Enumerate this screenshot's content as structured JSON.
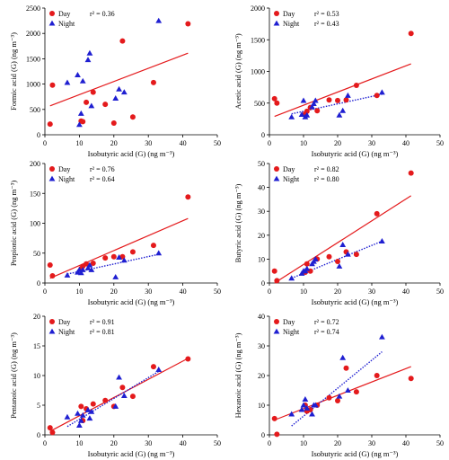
{
  "x_day": [
    1.5,
    2.2,
    10.5,
    11,
    12,
    14,
    17.5,
    20,
    22.5,
    25.5,
    31.5,
    41.5
  ],
  "x_night": [
    6.5,
    9.5,
    10,
    10.5,
    11,
    12.5,
    13,
    13.5,
    20.5,
    21.5,
    23,
    33
  ],
  "chart_data": [
    {
      "type": "scatter",
      "xlabel": "Isobutyric acid (G) (ng m⁻³)",
      "ylabel": "Formic acid (G) (ng m⁻³)",
      "xlim": [
        0,
        50
      ],
      "ylim": [
        0,
        2500
      ],
      "xticks": [
        "0",
        "10",
        "20",
        "30",
        "40",
        "50"
      ],
      "yticks": [
        "0",
        "500",
        "1000",
        "1500",
        "2000",
        "2500"
      ],
      "legend": {
        "day_label": "Day",
        "night_label": "Night",
        "day_r2": "r² = 0.36",
        "night_r2": ""
      },
      "series": [
        {
          "name": "Day",
          "y": [
            210,
            980,
            270,
            260,
            640,
            840,
            600,
            230,
            1850,
            350,
            1030,
            2190
          ],
          "fit": {
            "x": [
              1.5,
              41.5
            ],
            "y": [
              570,
              1610
            ],
            "style": "solid"
          }
        },
        {
          "name": "Night",
          "y": [
            1030,
            1180,
            200,
            420,
            1060,
            1480,
            1610,
            570,
            720,
            900,
            840,
            2250
          ]
        }
      ]
    },
    {
      "type": "scatter",
      "xlabel": "Isobutyric acid (G) (ng m⁻³)",
      "ylabel": "Acetic acid (G) (ng m⁻³)",
      "xlim": [
        0,
        50
      ],
      "ylim": [
        0,
        2000
      ],
      "xticks": [
        "0",
        "10",
        "20",
        "30",
        "40",
        "50"
      ],
      "yticks": [
        "0",
        "500",
        "1000",
        "1500",
        "2000"
      ],
      "legend": {
        "day_label": "Day",
        "night_label": "Night",
        "day_r2": "r² = 0.53",
        "night_r2": "r² = 0.43"
      },
      "series": [
        {
          "name": "Day",
          "y": [
            570,
            500,
            330,
            370,
            430,
            380,
            550,
            540,
            550,
            780,
            620,
            1600
          ],
          "fit": {
            "x": [
              1.5,
              41.5
            ],
            "y": [
              290,
              1120
            ],
            "style": "solid"
          }
        },
        {
          "name": "Night",
          "y": [
            280,
            320,
            540,
            280,
            310,
            440,
            490,
            540,
            310,
            380,
            620,
            670
          ],
          "fit": {
            "x": [
              6.5,
              33
            ],
            "y": [
              330,
              640
            ],
            "style": "dotted"
          }
        }
      ]
    },
    {
      "type": "scatter",
      "xlabel": "Isobutyric acid (G) (ng m⁻³)",
      "ylabel": "Propionic acid (G) (ng m⁻³)",
      "xlim": [
        0,
        50
      ],
      "ylim": [
        0,
        200
      ],
      "xticks": [
        "0",
        "10",
        "20",
        "30",
        "40",
        "50"
      ],
      "yticks": [
        "0",
        "50",
        "100",
        "150",
        "200"
      ],
      "legend": {
        "day_label": "Day",
        "night_label": "Night",
        "day_r2": "r² = 0.76",
        "night_r2": "r² = 0.64"
      },
      "series": [
        {
          "name": "Day",
          "y": [
            30,
            12,
            24,
            28,
            32,
            33,
            42,
            44,
            44,
            52,
            63,
            144
          ],
          "fit": {
            "x": [
              1.5,
              41.5
            ],
            "y": [
              8,
              108
            ],
            "style": "solid"
          }
        },
        {
          "name": "Night",
          "y": [
            13,
            18,
            22,
            17,
            22,
            25,
            30,
            22,
            10,
            43,
            38,
            50
          ],
          "fit": {
            "x": [
              6.5,
              33
            ],
            "y": [
              15,
              48
            ],
            "style": "dotted"
          }
        }
      ]
    },
    {
      "type": "scatter",
      "xlabel": "Isobutyric acid (G) (ng m⁻³)",
      "ylabel": "Butyric acid (G) (ng m⁻³)",
      "xlim": [
        0,
        50
      ],
      "ylim": [
        0,
        50
      ],
      "xticks": [
        "0",
        "10",
        "20",
        "30",
        "40",
        "50"
      ],
      "yticks": [
        "0",
        "10",
        "20",
        "30",
        "40",
        "50"
      ],
      "legend": {
        "day_label": "Day",
        "night_label": "Night",
        "day_r2": "r² = 0.82",
        "night_r2": "r² = 0.80"
      },
      "series": [
        {
          "name": "Day",
          "y": [
            5,
            1,
            4.5,
            8,
            5,
            10,
            11,
            9,
            13,
            12,
            29,
            46
          ],
          "fit": {
            "x": [
              1.5,
              41.5
            ],
            "y": [
              0,
              36.5
            ],
            "style": "solid"
          }
        },
        {
          "name": "Night",
          "y": [
            2,
            4,
            5,
            5,
            6,
            8,
            9,
            10,
            7,
            16,
            12,
            17.5
          ],
          "fit": {
            "x": [
              6.5,
              33
            ],
            "y": [
              2,
              17.5
            ],
            "style": "dotted"
          }
        }
      ]
    },
    {
      "type": "scatter",
      "xlabel": "Isobutyric acid (G) (ng m⁻³)",
      "ylabel": "Pentanoic acid (G) (ng m⁻³)",
      "xlim": [
        0,
        50
      ],
      "ylim": [
        0,
        20
      ],
      "xticks": [
        "0",
        "10",
        "20",
        "30",
        "40",
        "50"
      ],
      "yticks": [
        "0",
        "5",
        "10",
        "15",
        "20"
      ],
      "legend": {
        "day_label": "Day",
        "night_label": "Night",
        "day_r2": "r² = 0.91",
        "night_r2": "r² = 0.81"
      },
      "series": [
        {
          "name": "Day",
          "y": [
            1.2,
            0.4,
            4.8,
            2.4,
            4.4,
            5.2,
            5.8,
            4.8,
            8,
            6.5,
            11.5,
            12.8
          ],
          "fit": {
            "x": [
              1.5,
              41.5
            ],
            "y": [
              0.6,
              12.9
            ],
            "style": "solid"
          }
        },
        {
          "name": "Night",
          "y": [
            3,
            3.6,
            1.6,
            2.4,
            3.3,
            4.2,
            2.8,
            3.9,
            4.8,
            9.7,
            6.6,
            11
          ],
          "fit": {
            "x": [
              6.5,
              33
            ],
            "y": [
              1.4,
              10.7
            ],
            "style": "dotted"
          }
        }
      ]
    },
    {
      "type": "scatter",
      "xlabel": "Isobutyric acid (G) (ng m⁻³)",
      "ylabel": "Hexanoic acid (G) (ng m⁻³)",
      "xlim": [
        0,
        50
      ],
      "ylim": [
        0,
        40
      ],
      "xticks": [
        "0",
        "10",
        "20",
        "30",
        "40",
        "50"
      ],
      "yticks": [
        "0",
        "10",
        "20",
        "30",
        "40"
      ],
      "legend": {
        "day_label": "Day",
        "night_label": "Night",
        "day_r2": "r² = 0.72",
        "night_r2": "r² = 0.74"
      },
      "series": [
        {
          "name": "Day",
          "y": [
            5.5,
            0.2,
            10,
            8,
            8.5,
            10,
            12.5,
            11.5,
            22.5,
            14.5,
            20,
            19
          ],
          "fit": {
            "x": [
              1.5,
              41.5
            ],
            "y": [
              5,
              23
            ],
            "style": "solid"
          }
        },
        {
          "name": "Night",
          "y": [
            7,
            8.5,
            10,
            12,
            9,
            7,
            10,
            10,
            13,
            26,
            15,
            33
          ],
          "fit": {
            "x": [
              6.5,
              33
            ],
            "y": [
              3,
              28
            ],
            "style": "dotted"
          }
        }
      ]
    }
  ],
  "colors": {
    "day": "#e41a1c",
    "night": "#1f1fd1",
    "axis": "#000000"
  }
}
